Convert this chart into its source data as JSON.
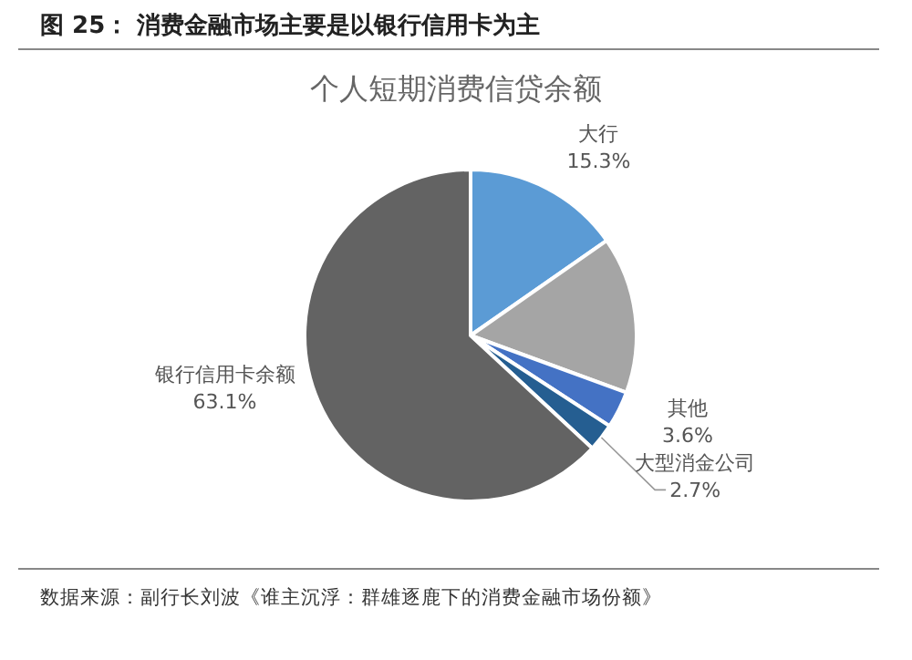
{
  "chart_data": {
    "type": "pie",
    "title": "图 25： 消费金融市场主要是以银行信用卡为主",
    "subtitle": "个人短期消费信贷余额",
    "categories": [
      "大行",
      null,
      "其他",
      "大型消金公司",
      "银行信用卡余额"
    ],
    "values": [
      15.3,
      15.3,
      3.6,
      2.7,
      63.1
    ],
    "colors": [
      "#5b9bd5",
      "#a5a5a5",
      "#4472c4",
      "#255e91",
      "#636363"
    ],
    "value_labels": [
      "15.3%",
      null,
      "3.6%",
      "2.7%",
      "63.1%"
    ],
    "annotations": [
      "数据来源：副行长刘波《谁主沉浮：群雄逐鹿下的消费金融市场份额》"
    ]
  }
}
